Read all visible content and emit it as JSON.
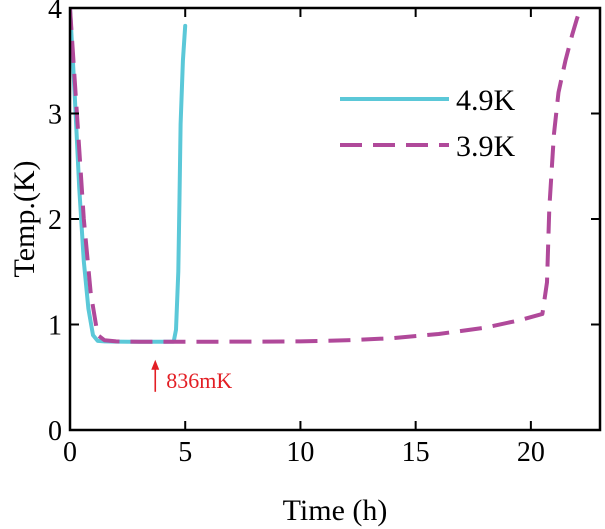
{
  "chart_data": {
    "type": "line",
    "title": "",
    "xlabel": "Time (h)",
    "ylabel": "Temp.(K)",
    "xlim": [
      0,
      23
    ],
    "ylim": [
      0,
      4
    ],
    "xticks": [
      0,
      5,
      10,
      15,
      20
    ],
    "yticks": [
      0,
      1,
      2,
      3,
      4
    ],
    "grid": false,
    "legend_position": "top-right",
    "series": [
      {
        "name": "4.9K",
        "style": "solid",
        "color": "#5bc8d8",
        "x": [
          0,
          0.2,
          0.4,
          0.6,
          0.8,
          1.0,
          1.2,
          1.5,
          2.0,
          3.0,
          4.0,
          4.5,
          4.6,
          4.7,
          4.75,
          4.8,
          4.9,
          5.0
        ],
        "y": [
          4.0,
          3.2,
          2.3,
          1.6,
          1.15,
          0.9,
          0.845,
          0.84,
          0.838,
          0.836,
          0.836,
          0.838,
          0.95,
          1.5,
          2.2,
          2.9,
          3.5,
          3.83
        ]
      },
      {
        "name": "3.9K",
        "style": "dashed",
        "color": "#b0499a",
        "x": [
          0,
          0.3,
          0.6,
          0.9,
          1.2,
          1.5,
          2,
          3,
          5,
          8,
          10,
          12,
          14,
          16,
          18,
          19.5,
          20.5,
          20.7,
          20.8,
          21.0,
          21.2,
          21.5,
          21.8,
          22.0,
          22.3
        ],
        "y": [
          4.0,
          3.0,
          2.0,
          1.3,
          0.9,
          0.85,
          0.84,
          0.836,
          0.836,
          0.838,
          0.84,
          0.85,
          0.87,
          0.91,
          0.97,
          1.04,
          1.1,
          1.4,
          2.1,
          2.8,
          3.2,
          3.5,
          3.75,
          3.9,
          4.1
        ]
      }
    ],
    "annotations": [
      {
        "text": "836mK",
        "x": 3.7,
        "y": 0.836,
        "color": "#e31e24"
      }
    ]
  }
}
